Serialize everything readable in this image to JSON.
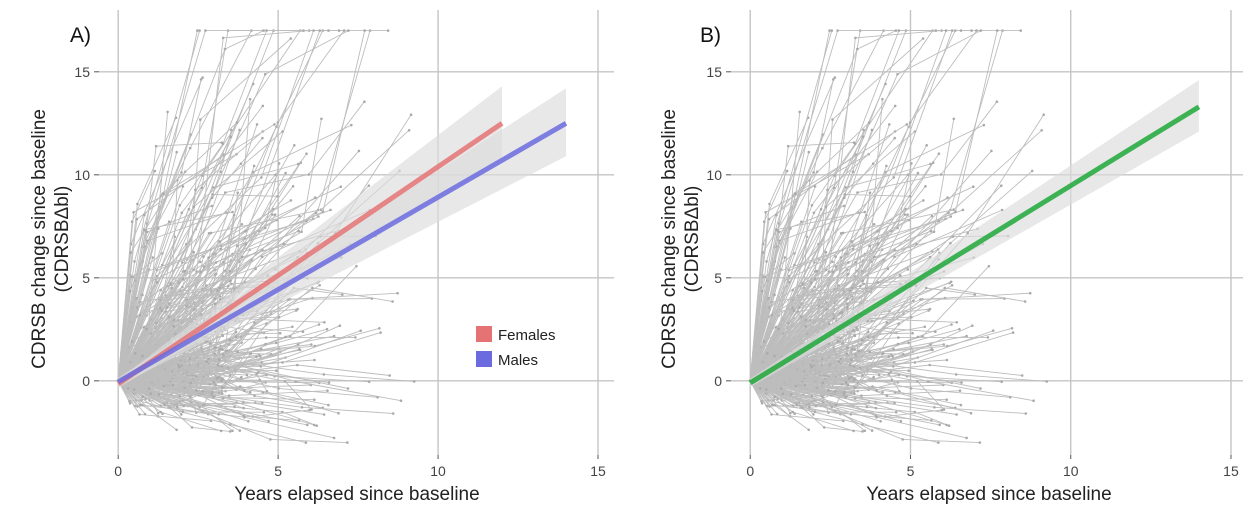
{
  "chart_data": [
    {
      "type": "line",
      "panel_label": "A)",
      "xlabel": "Years elapsed since baseline",
      "ylabel_lines": [
        "CDRSB change since baseline",
        "(CDRSBΔbl)"
      ],
      "xlim": [
        -0.6,
        15.5
      ],
      "ylim": [
        -3.6,
        18
      ],
      "x_ticks": [
        0,
        5,
        10,
        15
      ],
      "y_ticks": [
        0,
        5,
        10,
        15
      ],
      "grid": true,
      "legend_position": "bottom-right",
      "legend": [
        {
          "label": "Females",
          "color": "#e57373"
        },
        {
          "label": "Males",
          "color": "#6b6bdf"
        }
      ],
      "background_trajectories": {
        "color": "#bdbdbd",
        "description_hidden": true,
        "seed": 7
      },
      "series": [
        {
          "name": "Females",
          "color": "#e57373",
          "x": [
            0,
            12
          ],
          "y": [
            -0.15,
            12.5
          ],
          "ci_lower": [
            -0.35,
            10.8
          ],
          "ci_upper": [
            0.05,
            14.3
          ]
        },
        {
          "name": "Males",
          "color": "#6b6bdf",
          "x": [
            0,
            14
          ],
          "y": [
            -0.05,
            12.5
          ],
          "ci_lower": [
            -0.25,
            10.9
          ],
          "ci_upper": [
            0.15,
            14.2
          ]
        }
      ]
    },
    {
      "type": "line",
      "panel_label": "B)",
      "xlabel": "Years elapsed since baseline",
      "ylabel_lines": [
        "CDRSB change since baseline",
        "(CDRSBΔbl)"
      ],
      "xlim": [
        -0.6,
        15.5
      ],
      "ylim": [
        -3.6,
        18
      ],
      "x_ticks": [
        0,
        5,
        10,
        15
      ],
      "y_ticks": [
        0,
        5,
        10,
        15
      ],
      "grid": true,
      "background_trajectories": {
        "color": "#bdbdbd",
        "seed": 7
      },
      "series": [
        {
          "color": "#1fa83a",
          "x": [
            0,
            14
          ],
          "y": [
            -0.1,
            13.3
          ],
          "ci_lower": [
            -0.3,
            12.1
          ],
          "ci_upper": [
            0.1,
            14.6
          ]
        }
      ]
    }
  ]
}
